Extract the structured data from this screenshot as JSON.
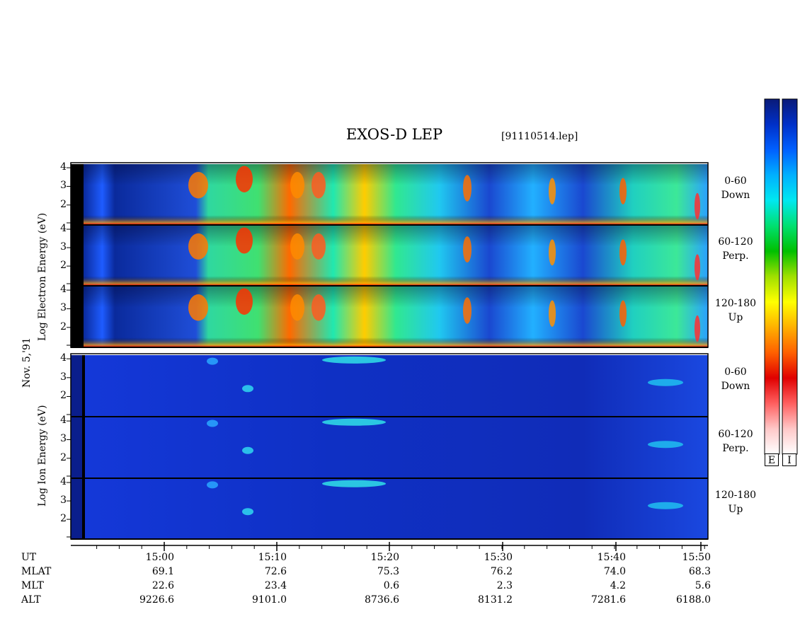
{
  "header": {
    "title": "EXOS-D LEP",
    "file_id": "[91110514.lep]"
  },
  "left_labels": {
    "date": "Nov. 5,'91",
    "electron_axis": [
      "Log",
      "Electron",
      "Energy",
      "(eV)"
    ],
    "ion_axis": [
      "Log",
      "Ion",
      "Energy",
      "(eV)"
    ]
  },
  "panels": [
    {
      "group": "electron",
      "angle": "0-60",
      "direction": "Down"
    },
    {
      "group": "electron",
      "angle": "60-120",
      "direction": "Perp."
    },
    {
      "group": "electron",
      "angle": "120-180",
      "direction": "Up"
    },
    {
      "group": "ion",
      "angle": "0-60",
      "direction": "Down"
    },
    {
      "group": "ion",
      "angle": "60-120",
      "direction": "Perp."
    },
    {
      "group": "ion",
      "angle": "120-180",
      "direction": "Up"
    }
  ],
  "colorbar": {
    "labels": [
      "E",
      "I"
    ],
    "colors": [
      "#0a1a78",
      "#0030c8",
      "#0060ff",
      "#00b0ff",
      "#00e8f0",
      "#00e070",
      "#00c000",
      "#a0e000",
      "#ffff00",
      "#ffb000",
      "#ff6000",
      "#e00000",
      "#ff6060",
      "#ffc8c8",
      "#ffffff"
    ]
  },
  "chart_data": {
    "type": "heatmap",
    "title": "EXOS-D LEP",
    "xlabel": "UT",
    "ylabel": "Log Energy (eV)",
    "x_ticks": [
      "15:00",
      "15:10",
      "15:20",
      "15:30",
      "15:40",
      "15:50"
    ],
    "y_ticks": [
      "4",
      "3",
      "2"
    ],
    "rows": [
      {
        "name": "UT",
        "values": [
          "15:00",
          "15:10",
          "15:20",
          "15:30",
          "15:40",
          "15:50"
        ]
      },
      {
        "name": "MLAT",
        "values": [
          "69.1",
          "72.6",
          "75.3",
          "76.2",
          "74.0",
          "68.3"
        ]
      },
      {
        "name": "MLT",
        "values": [
          "22.6",
          "23.4",
          "0.6",
          "2.3",
          "4.2",
          "5.6"
        ]
      },
      {
        "name": "ALT",
        "values": [
          "9226.6",
          "9101.0",
          "8736.6",
          "8131.2",
          "7281.6",
          "6188.0"
        ]
      }
    ]
  }
}
